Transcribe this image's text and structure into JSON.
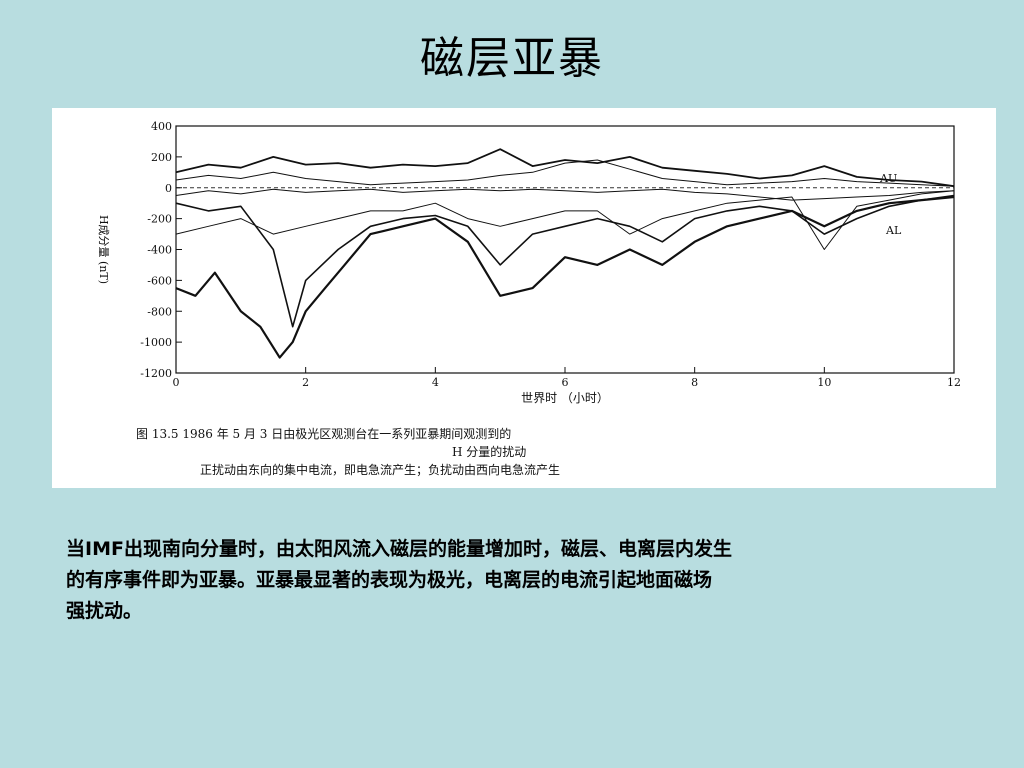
{
  "slide": {
    "title": "磁层亚暴",
    "body_lines": [
      "当IMF出现南向分量时，由太阳风流入磁层的能量增加时，磁层、电离层内发生",
      "的有序事件即为亚暴。亚暴最显著的表现为极光，电离层的电流引起地面磁场",
      "强扰动。"
    ],
    "background_color": "#b8dde0"
  },
  "chart_data": {
    "type": "line",
    "xlabel": "世界时 （小时）",
    "ylabel": "H成分量 (nT)",
    "xlim": [
      0,
      12
    ],
    "ylim": [
      -1200,
      400
    ],
    "xticks": [
      "0",
      "2",
      "4",
      "6",
      "8",
      "10",
      "12"
    ],
    "yticks": [
      "400",
      "200",
      "0",
      "-200",
      "-400",
      "-600",
      "-800",
      "-1000",
      "-1200"
    ],
    "grid": false,
    "zero_line": "dashed",
    "annotations": [
      "AU",
      "AL"
    ],
    "caption": [
      "图 13.5    1986 年 5 月 3 日由极光区观测台在一系列亚暴期间观测到的",
      "H 分量的扰动",
      "正扰动由东向的集中电流，即电急流产生；负扰动由西向电急流产生"
    ],
    "series": [
      {
        "x": [
          0,
          0.5,
          1,
          1.5,
          2,
          2.5,
          3,
          3.5,
          4,
          4.5,
          5,
          5.5,
          6,
          6.5,
          7,
          7.5,
          8,
          8.5,
          9,
          9.5,
          10,
          10.5,
          11,
          11.5,
          12
        ],
        "y": [
          100,
          150,
          130,
          200,
          150,
          160,
          130,
          150,
          140,
          160,
          250,
          140,
          180,
          160,
          200,
          130,
          110,
          90,
          60,
          80,
          140,
          70,
          50,
          40,
          10
        ]
      },
      {
        "x": [
          0,
          0.5,
          1,
          1.5,
          2,
          2.5,
          3,
          3.5,
          4,
          4.5,
          5,
          5.5,
          6,
          6.5,
          7,
          7.5,
          8,
          8.5,
          9,
          9.5,
          10,
          10.5,
          11,
          11.5,
          12
        ],
        "y": [
          50,
          80,
          60,
          100,
          60,
          40,
          20,
          30,
          40,
          50,
          80,
          100,
          160,
          180,
          120,
          60,
          40,
          20,
          30,
          40,
          60,
          40,
          30,
          20,
          10
        ]
      },
      {
        "x": [
          0,
          0.5,
          1,
          1.5,
          2,
          2.5,
          3,
          3.5,
          4,
          4.5,
          5,
          5.5,
          6,
          6.5,
          7,
          7.5,
          8,
          8.5,
          9,
          9.5,
          10,
          10.5,
          11,
          11.5,
          12
        ],
        "y": [
          -50,
          -20,
          -40,
          -10,
          -30,
          -20,
          -10,
          -30,
          -20,
          -10,
          -20,
          -10,
          -20,
          -30,
          -20,
          -10,
          -30,
          -40,
          -60,
          -80,
          -70,
          -60,
          -50,
          -30,
          -20
        ]
      },
      {
        "x": [
          0,
          0.5,
          1,
          1.5,
          1.8,
          2,
          2.5,
          3,
          3.5,
          4,
          4.5,
          5,
          5.5,
          6,
          6.5,
          7,
          7.5,
          8,
          8.5,
          9,
          9.5,
          10,
          10.5,
          11,
          11.5,
          12
        ],
        "y": [
          -100,
          -150,
          -120,
          -400,
          -900,
          -600,
          -400,
          -250,
          -200,
          -180,
          -250,
          -500,
          -300,
          -250,
          -200,
          -250,
          -350,
          -200,
          -150,
          -120,
          -150,
          -300,
          -200,
          -120,
          -80,
          -50
        ]
      },
      {
        "x": [
          0,
          0.3,
          0.6,
          1,
          1.3,
          1.6,
          1.8,
          2,
          2.3,
          2.6,
          3,
          3.5,
          4,
          4.5,
          5,
          5.5,
          6,
          6.5,
          7,
          7.5,
          8,
          8.5,
          9,
          9.5,
          10,
          10.5,
          11,
          11.5,
          12
        ],
        "y": [
          -650,
          -700,
          -550,
          -800,
          -900,
          -1100,
          -1000,
          -800,
          -650,
          -500,
          -300,
          -250,
          -200,
          -350,
          -700,
          -650,
          -450,
          -500,
          -400,
          -500,
          -350,
          -250,
          -200,
          -150,
          -250,
          -150,
          -100,
          -80,
          -60
        ]
      },
      {
        "x": [
          0,
          0.5,
          1,
          1.5,
          2,
          2.5,
          3,
          3.5,
          4,
          4.5,
          5,
          5.5,
          6,
          6.5,
          7,
          7.5,
          8,
          8.5,
          9,
          9.5,
          10,
          10.5,
          11,
          11.5,
          12
        ],
        "y": [
          -300,
          -250,
          -200,
          -300,
          -250,
          -200,
          -150,
          -150,
          -100,
          -200,
          -250,
          -200,
          -150,
          -150,
          -300,
          -200,
          -150,
          -100,
          -80,
          -60,
          -400,
          -120,
          -80,
          -40,
          -20
        ]
      }
    ]
  }
}
